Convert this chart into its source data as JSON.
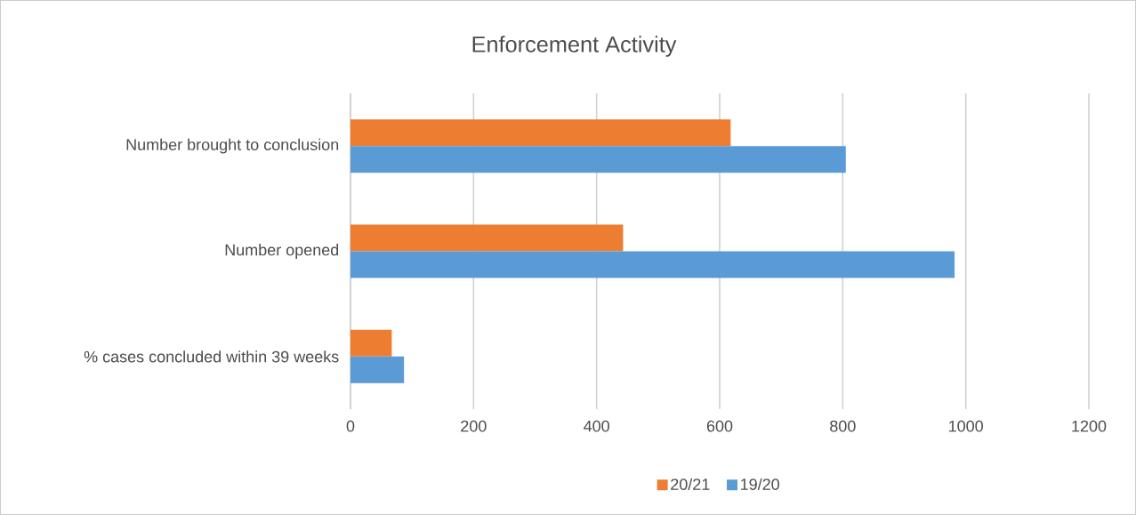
{
  "chart_data": {
    "type": "bar",
    "title": "Enforcement Activity",
    "orientation": "horizontal",
    "categories": [
      "Number brought to conclusion",
      "Number opened",
      "% cases concluded within 39 weeks"
    ],
    "series": [
      {
        "name": "20/21",
        "color": "#ed7d31",
        "values": [
          618,
          443,
          67
        ]
      },
      {
        "name": "19/20",
        "color": "#5b9bd5",
        "values": [
          805,
          982,
          87
        ]
      }
    ],
    "xlim": [
      0,
      1200
    ],
    "xticks": [
      0,
      200,
      400,
      600,
      800,
      1000,
      1200
    ],
    "grid": "x",
    "legend": "bottom"
  }
}
